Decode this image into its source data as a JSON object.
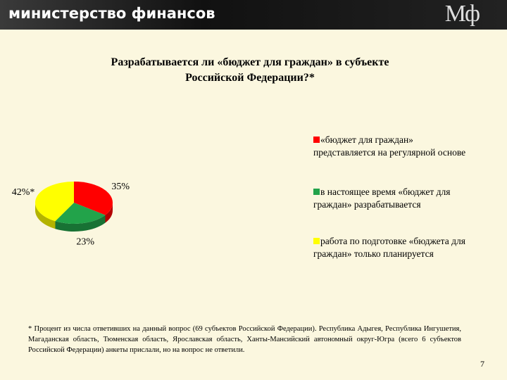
{
  "header": {
    "title": "министерство финансов",
    "logo": "Мф"
  },
  "chart_data": {
    "type": "pie",
    "title": "Разрабатывается ли «бюджет для граждан» в субъекте Российской Федерации?*",
    "categories": [
      "«бюджет для граждан» представляется на регулярной основе",
      "в настоящее время «бюджет для граждан» разрабатывается",
      "работа по подготовке «бюджета для граждан» только планируется"
    ],
    "values": [
      35,
      23,
      42
    ],
    "value_labels": [
      "35%",
      "23%",
      "42%*"
    ],
    "colors": [
      "#ff0000",
      "#22a34a",
      "#ffff00"
    ],
    "legend": "right"
  },
  "footnote": "* Процент из числа ответивших на данный вопрос (69 субъектов Российской Федерации). Республика Адыгея, Республика Ингушетия, Магаданская область, Тюменская область, Ярославская область, Ханты-Мансийский автономный округ-Югра (всего 6 субъектов Российской Федерации) анкеты прислали, но на вопрос не ответили.",
  "page_number": "7"
}
